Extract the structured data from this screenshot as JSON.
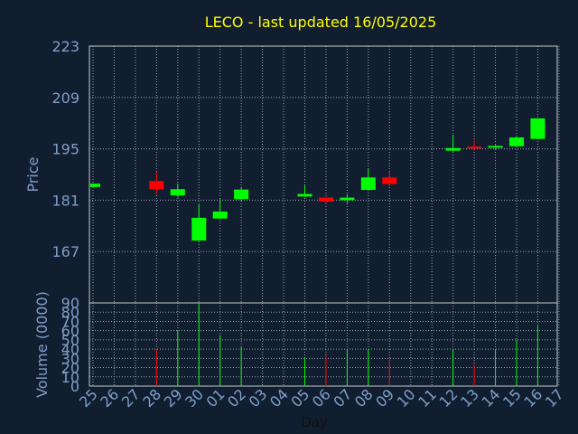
{
  "colors": {
    "background": "#111e30",
    "frame": "#c8c8c8",
    "grid": "#9aa6b6",
    "title": "#ffff00",
    "axis_text": "#7f9fc8",
    "up": "#00ff00",
    "down": "#ff0000"
  },
  "chart_data": {
    "type": "candlestick",
    "title": "LECO - last updated 16/05/2025",
    "xlabel": "Day",
    "price_panel": {
      "ylabel": "Price",
      "ylim": [
        153,
        223
      ],
      "yticks": [
        "223",
        "209",
        "195",
        "181",
        "167"
      ],
      "ytick_values": [
        223,
        209,
        195,
        181,
        167
      ],
      "grid": true
    },
    "volume_panel": {
      "ylabel": "Volume (0000)",
      "ylim": [
        0,
        90
      ],
      "yticks": [
        "90",
        "80",
        "70",
        "60",
        "50",
        "40",
        "30",
        "20",
        "10",
        "0"
      ],
      "ytick_values": [
        90,
        80,
        70,
        60,
        50,
        40,
        30,
        20,
        10,
        0
      ],
      "grid": true
    },
    "categories": [
      "25",
      "26",
      "27",
      "28",
      "29",
      "30",
      "01",
      "02",
      "03",
      "04",
      "05",
      "06",
      "07",
      "08",
      "09",
      "10",
      "11",
      "12",
      "13",
      "14",
      "15",
      "16",
      "17"
    ],
    "candles": [
      {
        "day": "25",
        "open": 184.6,
        "high": 185.5,
        "low": 184.3,
        "close": 185.5,
        "volume": null
      },
      {
        "day": "28",
        "open": 186.2,
        "high": 188.7,
        "low": 182.6,
        "close": 184.0,
        "volume": 40
      },
      {
        "day": "29",
        "open": 182.3,
        "high": 185.5,
        "low": 181.8,
        "close": 184.0,
        "volume": 60
      },
      {
        "day": "30",
        "open": 170.0,
        "high": 179.8,
        "low": 169.8,
        "close": 176.2,
        "volume": 90
      },
      {
        "day": "01",
        "open": 176.0,
        "high": 181.3,
        "low": 175.9,
        "close": 177.9,
        "volume": 55
      },
      {
        "day": "02",
        "open": 181.3,
        "high": 184.5,
        "low": 180.6,
        "close": 183.9,
        "volume": 42
      },
      {
        "day": "05",
        "open": 182.0,
        "high": 185.0,
        "low": 181.8,
        "close": 182.7,
        "volume": 30
      },
      {
        "day": "06",
        "open": 181.7,
        "high": 181.7,
        "low": 179.9,
        "close": 180.6,
        "volume": 33
      },
      {
        "day": "07",
        "open": 181.0,
        "high": 182.6,
        "low": 180.2,
        "close": 181.7,
        "volume": 40
      },
      {
        "day": "08",
        "open": 183.8,
        "high": 189.5,
        "low": 183.7,
        "close": 187.2,
        "volume": 40
      },
      {
        "day": "09",
        "open": 187.2,
        "high": 188.8,
        "low": 185.4,
        "close": 185.4,
        "volume": 30
      },
      {
        "day": "12",
        "open": 194.5,
        "high": 198.8,
        "low": 194.1,
        "close": 195.2,
        "volume": 40
      },
      {
        "day": "13",
        "open": 195.6,
        "high": 197.3,
        "low": 194.8,
        "close": 195.1,
        "volume": 23
      },
      {
        "day": "14",
        "open": 195.3,
        "high": 196.0,
        "low": 195.0,
        "close": 195.8,
        "volume": 40
      },
      {
        "day": "15",
        "open": 195.7,
        "high": 198.6,
        "low": 195.7,
        "close": 198.1,
        "volume": 50
      },
      {
        "day": "16",
        "open": 197.7,
        "high": 203.3,
        "low": 197.7,
        "close": 203.3,
        "volume": 65
      }
    ]
  }
}
